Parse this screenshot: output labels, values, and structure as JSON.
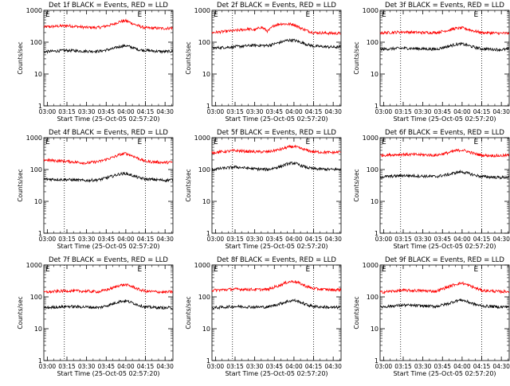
{
  "figure": {
    "y_label": "Counts/sec",
    "x_label": "Start Time (25-Oct-05 02:57:20)",
    "marker": "E",
    "x_ticks": [
      "03:00",
      "03:15",
      "03:30",
      "03:45",
      "04:00",
      "04:15",
      "04:30"
    ],
    "y_ticks": [
      "1",
      "10",
      "100",
      "1000"
    ]
  },
  "chart_data": [
    {
      "type": "line",
      "title": "Det 1f BLACK = Events, RED = LLD",
      "xlabel": "Start Time (25-Oct-05 02:57:20)",
      "ylabel": "Counts/sec",
      "xlim": [
        "02:57:20",
        "04:36:00"
      ],
      "ylim": [
        1,
        1000
      ],
      "yscale": "log",
      "grid": "vertical dotted lines at 03:13 and 04:15",
      "series": [
        {
          "color": "#ff0000",
          "x": [
            "02:57:20",
            "03:15",
            "03:30",
            "03:40",
            "03:50",
            "03:55",
            "04:00",
            "04:05",
            "04:10",
            "04:15",
            "04:30",
            "04:36"
          ],
          "values": [
            300,
            330,
            290,
            290,
            360,
            440,
            470,
            390,
            320,
            280,
            270,
            280
          ]
        },
        {
          "color": "#000000",
          "x": [
            "02:57:20",
            "03:15",
            "03:30",
            "03:40",
            "03:50",
            "03:55",
            "04:00",
            "04:05",
            "04:10",
            "04:15",
            "04:30",
            "04:36"
          ],
          "values": [
            50,
            55,
            52,
            52,
            62,
            72,
            78,
            68,
            58,
            55,
            50,
            52
          ]
        }
      ]
    },
    {
      "type": "line",
      "title": "Det 2f BLACK = Events, RED = LLD",
      "xlabel": "Start Time (25-Oct-05 02:57:20)",
      "ylabel": "Counts/sec",
      "xlim": [
        "02:57:20",
        "04:36:00"
      ],
      "ylim": [
        1,
        1000
      ],
      "yscale": "log",
      "grid": "vertical dotted lines at 03:13 and 04:15",
      "series": [
        {
          "color": "#ff0000",
          "x": [
            "02:57:20",
            "03:15",
            "03:25",
            "03:30",
            "03:35",
            "03:40",
            "03:45",
            "03:50",
            "04:00",
            "04:05",
            "04:10",
            "04:15",
            "04:30",
            "04:36"
          ],
          "values": [
            200,
            230,
            260,
            240,
            300,
            220,
            340,
            380,
            360,
            280,
            230,
            200,
            190,
            190
          ]
        },
        {
          "color": "#000000",
          "x": [
            "02:57:20",
            "03:15",
            "03:30",
            "03:40",
            "03:50",
            "03:55",
            "04:00",
            "04:05",
            "04:10",
            "04:15",
            "04:30",
            "04:36"
          ],
          "values": [
            65,
            72,
            80,
            78,
            100,
            115,
            115,
            100,
            85,
            75,
            70,
            70
          ]
        }
      ]
    },
    {
      "type": "line",
      "title": "Det 3f BLACK = Events, RED = LLD",
      "xlabel": "Start Time (25-Oct-05 02:57:20)",
      "ylabel": "Counts/sec",
      "xlim": [
        "02:57:20",
        "04:36:00"
      ],
      "ylim": [
        1,
        1000
      ],
      "yscale": "log",
      "grid": "vertical dotted lines at 03:13 and 04:15",
      "series": [
        {
          "color": "#ff0000",
          "x": [
            "02:57:20",
            "03:15",
            "03:30",
            "03:40",
            "03:50",
            "03:55",
            "04:00",
            "04:05",
            "04:10",
            "04:15",
            "04:30",
            "04:36"
          ],
          "values": [
            195,
            210,
            200,
            200,
            240,
            270,
            280,
            250,
            220,
            200,
            190,
            190
          ]
        },
        {
          "color": "#000000",
          "x": [
            "02:57:20",
            "03:15",
            "03:30",
            "03:40",
            "03:50",
            "03:55",
            "04:00",
            "04:05",
            "04:10",
            "04:15",
            "04:30",
            "04:36"
          ],
          "values": [
            60,
            65,
            62,
            60,
            75,
            85,
            88,
            78,
            68,
            62,
            58,
            60
          ]
        }
      ]
    },
    {
      "type": "line",
      "title": "Det 4f BLACK = Events, RED = LLD",
      "xlabel": "Start Time (25-Oct-05 02:57:20)",
      "ylabel": "Counts/sec",
      "xlim": [
        "02:57:20",
        "04:36:00"
      ],
      "ylim": [
        1,
        1000
      ],
      "yscale": "log",
      "grid": "vertical dotted lines at 03:13 and 04:15",
      "series": [
        {
          "color": "#ff0000",
          "x": [
            "02:57:20",
            "03:15",
            "03:30",
            "03:40",
            "03:50",
            "03:55",
            "04:00",
            "04:05",
            "04:10",
            "04:15",
            "04:30",
            "04:36"
          ],
          "values": [
            200,
            180,
            160,
            180,
            240,
            290,
            320,
            270,
            220,
            180,
            165,
            170
          ]
        },
        {
          "color": "#000000",
          "x": [
            "02:57:20",
            "03:15",
            "03:30",
            "03:40",
            "03:50",
            "03:55",
            "04:00",
            "04:05",
            "04:10",
            "04:15",
            "04:30",
            "04:36"
          ],
          "values": [
            50,
            48,
            45,
            48,
            62,
            72,
            75,
            65,
            55,
            50,
            46,
            48
          ]
        }
      ]
    },
    {
      "type": "line",
      "title": "Det 5f BLACK = Events, RED = LLD",
      "xlabel": "Start Time (25-Oct-05 02:57:20)",
      "ylabel": "Counts/sec",
      "xlim": [
        "02:57:20",
        "04:36:00"
      ],
      "ylim": [
        1,
        1000
      ],
      "yscale": "log",
      "grid": "vertical dotted lines at 03:13 and 04:15",
      "series": [
        {
          "color": "#ff0000",
          "x": [
            "02:57:20",
            "03:15",
            "03:30",
            "03:40",
            "03:50",
            "03:55",
            "04:00",
            "04:05",
            "04:10",
            "04:15",
            "04:30",
            "04:36"
          ],
          "values": [
            340,
            390,
            360,
            360,
            430,
            500,
            530,
            460,
            400,
            360,
            340,
            360
          ]
        },
        {
          "color": "#000000",
          "x": [
            "02:57:20",
            "03:15",
            "03:30",
            "03:40",
            "03:50",
            "03:55",
            "04:00",
            "04:05",
            "04:10",
            "04:15",
            "04:30",
            "04:36"
          ],
          "values": [
            100,
            120,
            105,
            100,
            125,
            150,
            160,
            135,
            115,
            105,
            100,
            105
          ]
        }
      ]
    },
    {
      "type": "line",
      "title": "Det 6f BLACK = Events, RED = LLD",
      "xlabel": "Start Time (25-Oct-05 02:57:20)",
      "ylabel": "Counts/sec",
      "xlim": [
        "02:57:20",
        "04:36:00"
      ],
      "ylim": [
        1,
        1000
      ],
      "yscale": "log",
      "grid": "vertical dotted lines at 03:13 and 04:15",
      "series": [
        {
          "color": "#ff0000",
          "x": [
            "02:57:20",
            "03:15",
            "03:30",
            "03:40",
            "03:50",
            "03:55",
            "04:00",
            "04:05",
            "04:10",
            "04:15",
            "04:30",
            "04:36"
          ],
          "values": [
            280,
            300,
            290,
            280,
            340,
            390,
            410,
            360,
            310,
            280,
            270,
            280
          ]
        },
        {
          "color": "#000000",
          "x": [
            "02:57:20",
            "03:15",
            "03:30",
            "03:40",
            "03:50",
            "03:55",
            "04:00",
            "04:05",
            "04:10",
            "04:15",
            "04:30",
            "04:36"
          ],
          "values": [
            58,
            65,
            62,
            60,
            70,
            80,
            85,
            75,
            66,
            60,
            56,
            58
          ]
        }
      ]
    },
    {
      "type": "line",
      "title": "Det 7f BLACK = Events, RED = LLD",
      "xlabel": "Start Time (25-Oct-05 02:57:20)",
      "ylabel": "Counts/sec",
      "xlim": [
        "02:57:20",
        "04:36:00"
      ],
      "ylim": [
        1,
        1000
      ],
      "yscale": "log",
      "grid": "vertical dotted lines at 03:13 and 04:15",
      "series": [
        {
          "color": "#ff0000",
          "x": [
            "02:57:20",
            "03:15",
            "03:30",
            "03:40",
            "03:50",
            "03:55",
            "04:00",
            "04:05",
            "04:10",
            "04:15",
            "04:30",
            "04:36"
          ],
          "values": [
            140,
            155,
            150,
            145,
            190,
            230,
            240,
            210,
            170,
            150,
            140,
            145
          ]
        },
        {
          "color": "#000000",
          "x": [
            "02:57:20",
            "03:15",
            "03:30",
            "03:40",
            "03:50",
            "03:55",
            "04:00",
            "04:05",
            "04:10",
            "04:15",
            "04:30",
            "04:36"
          ],
          "values": [
            45,
            50,
            48,
            46,
            60,
            72,
            75,
            65,
            55,
            48,
            45,
            46
          ]
        }
      ]
    },
    {
      "type": "line",
      "title": "Det 8f BLACK = Events, RED = LLD",
      "xlabel": "Start Time (25-Oct-05 02:57:20)",
      "ylabel": "Counts/sec",
      "xlim": [
        "02:57:20",
        "04:36:00"
      ],
      "ylim": [
        1,
        1000
      ],
      "yscale": "log",
      "grid": "vertical dotted lines at 03:13 and 04:15",
      "series": [
        {
          "color": "#ff0000",
          "x": [
            "02:57:20",
            "03:15",
            "03:30",
            "03:40",
            "03:50",
            "03:55",
            "04:00",
            "04:05",
            "04:10",
            "04:15",
            "04:30",
            "04:36"
          ],
          "values": [
            160,
            175,
            170,
            170,
            240,
            290,
            310,
            260,
            210,
            180,
            165,
            170
          ]
        },
        {
          "color": "#000000",
          "x": [
            "02:57:20",
            "03:15",
            "03:30",
            "03:40",
            "03:50",
            "03:55",
            "04:00",
            "04:05",
            "04:10",
            "04:15",
            "04:30",
            "04:36"
          ],
          "values": [
            45,
            50,
            48,
            48,
            62,
            72,
            78,
            68,
            56,
            50,
            46,
            48
          ]
        }
      ]
    },
    {
      "type": "line",
      "title": "Det 9f BLACK = Events, RED = LLD",
      "xlabel": "Start Time (25-Oct-05 02:57:20)",
      "ylabel": "Counts/sec",
      "xlim": [
        "02:57:20",
        "04:36:00"
      ],
      "ylim": [
        1,
        1000
      ],
      "yscale": "log",
      "grid": "vertical dotted lines at 03:13 and 04:15",
      "series": [
        {
          "color": "#ff0000",
          "x": [
            "02:57:20",
            "03:15",
            "03:30",
            "03:40",
            "03:50",
            "03:55",
            "04:00",
            "04:05",
            "04:10",
            "04:15",
            "04:30",
            "04:36"
          ],
          "values": [
            140,
            160,
            155,
            150,
            210,
            250,
            270,
            230,
            190,
            160,
            145,
            150
          ]
        },
        {
          "color": "#000000",
          "x": [
            "02:57:20",
            "03:15",
            "03:30",
            "03:40",
            "03:50",
            "03:55",
            "04:00",
            "04:05",
            "04:10",
            "04:15",
            "04:30",
            "04:36"
          ],
          "values": [
            48,
            55,
            52,
            50,
            62,
            75,
            80,
            68,
            58,
            52,
            48,
            50
          ]
        }
      ]
    }
  ]
}
